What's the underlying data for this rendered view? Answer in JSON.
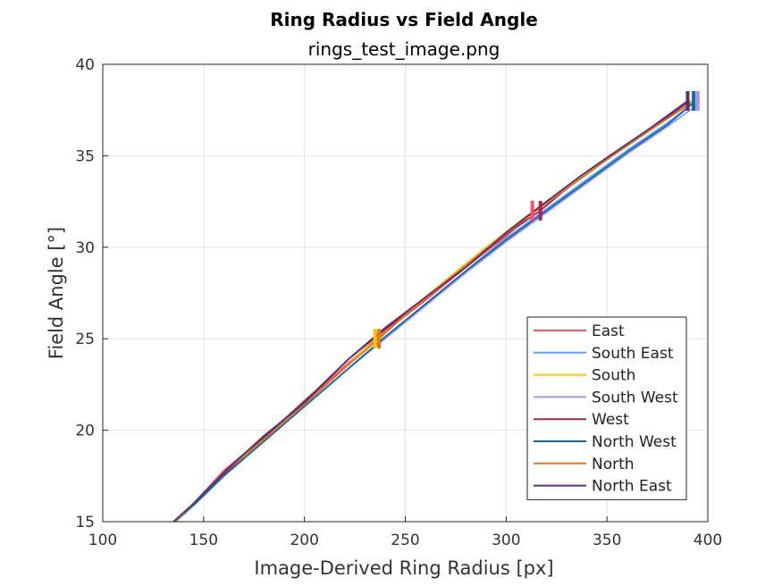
{
  "chart_data": {
    "type": "line",
    "title": "Ring Radius vs Field Angle",
    "subtitle": "rings_test_image.png",
    "xlabel": "Image-Derived Ring Radius [px]",
    "ylabel": "Field Angle [°]",
    "xlim": [
      100,
      400
    ],
    "ylim": [
      15,
      40
    ],
    "xticks": [
      100,
      150,
      200,
      250,
      300,
      350,
      400
    ],
    "yticks": [
      15,
      20,
      25,
      30,
      35,
      40
    ],
    "grid": true,
    "legend_position": "bottom-right",
    "series": [
      {
        "name": "East",
        "color": "#FF4D6D",
        "x": [
          136,
          145,
          160,
          180,
          200,
          220,
          240,
          260,
          280,
          300,
          313,
          330,
          350,
          370,
          392
        ],
        "y": [
          15,
          16,
          17.8,
          19.6,
          21.5,
          23.5,
          25.4,
          27.1,
          28.9,
          30.6,
          31.9,
          33.2,
          34.8,
          36.3,
          38
        ],
        "markers": [
          {
            "x": 313,
            "y": 32
          }
        ]
      },
      {
        "name": "South East",
        "color": "#5AA6FF",
        "x": [
          136,
          145,
          160,
          180,
          200,
          220,
          240,
          260,
          280,
          300,
          320,
          340,
          360,
          380,
          393
        ],
        "y": [
          15,
          15.9,
          17.5,
          19.4,
          21.3,
          23.2,
          25.1,
          26.9,
          28.7,
          30.5,
          32.1,
          33.7,
          35.3,
          36.8,
          37.9
        ],
        "markers": [
          {
            "x": 393,
            "y": 38
          }
        ]
      },
      {
        "name": "South",
        "color": "#FFC20E",
        "x": [
          136,
          145,
          160,
          180,
          200,
          220,
          235,
          250,
          270,
          290,
          310,
          330,
          350,
          370,
          392
        ],
        "y": [
          15,
          16,
          17.6,
          19.5,
          21.4,
          23.4,
          25,
          26.4,
          28.2,
          30,
          31.7,
          33.3,
          34.9,
          36.4,
          38
        ],
        "markers": [
          {
            "x": 235,
            "y": 25
          }
        ]
      },
      {
        "name": "South West",
        "color": "#A393F4",
        "x": [
          136,
          145,
          160,
          180,
          200,
          220,
          240,
          260,
          280,
          300,
          320,
          340,
          360,
          380,
          395
        ],
        "y": [
          15,
          15.9,
          17.5,
          19.4,
          21.3,
          23.2,
          25,
          26.8,
          28.6,
          30.3,
          31.9,
          33.5,
          35.1,
          36.6,
          37.8
        ],
        "markers": [
          {
            "x": 395,
            "y": 38
          }
        ]
      },
      {
        "name": "West",
        "color": "#A2294B",
        "x": [
          136,
          145,
          163,
          180,
          205,
          222,
          240,
          260,
          280,
          300,
          317,
          330,
          350,
          370,
          391
        ],
        "y": [
          15,
          16,
          17.9,
          19.6,
          22.1,
          23.9,
          25.5,
          27.2,
          29,
          30.7,
          32,
          33.2,
          34.8,
          36.3,
          38
        ],
        "markers": [
          {
            "x": 317,
            "y": 32
          }
        ]
      },
      {
        "name": "North West",
        "color": "#0E6E99",
        "x": [
          136,
          145,
          160,
          180,
          200,
          220,
          240,
          260,
          280,
          300,
          320,
          340,
          360,
          380,
          393
        ],
        "y": [
          15,
          15.9,
          17.5,
          19.4,
          21.3,
          23.2,
          25.1,
          26.9,
          28.7,
          30.4,
          32,
          33.6,
          35.2,
          36.7,
          37.9
        ],
        "markers": [
          {
            "x": 393,
            "y": 38
          }
        ]
      },
      {
        "name": "North",
        "color": "#D97B1E",
        "x": [
          136,
          145,
          160,
          180,
          200,
          220,
          237,
          250,
          270,
          290,
          310,
          330,
          350,
          370,
          392
        ],
        "y": [
          15,
          16,
          17.7,
          19.5,
          21.4,
          23.4,
          25,
          26.3,
          28.1,
          29.9,
          31.6,
          33.2,
          34.8,
          36.3,
          37.9
        ],
        "markers": [
          {
            "x": 237,
            "y": 25
          }
        ]
      },
      {
        "name": "North East",
        "color": "#5B2C83",
        "x": [
          135,
          145,
          162,
          180,
          200,
          222,
          240,
          258,
          280,
          300,
          320,
          337,
          350,
          370,
          390
        ],
        "y": [
          15,
          16,
          17.9,
          19.7,
          21.5,
          23.9,
          25.6,
          27.1,
          28.9,
          30.8,
          32.5,
          33.9,
          34.9,
          36.4,
          38
        ],
        "markers": [
          {
            "x": 390,
            "y": 38
          }
        ]
      }
    ]
  }
}
